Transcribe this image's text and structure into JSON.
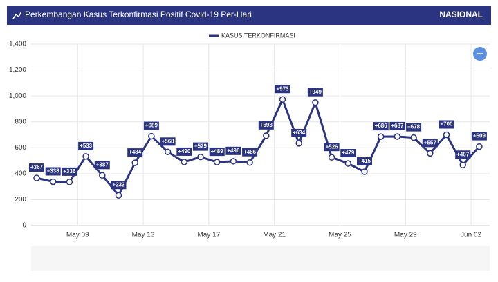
{
  "header": {
    "title": "Perkembangan Kasus Terkonfirmasi Positif Covid-19 Per-Hari",
    "scope": "NASIONAL"
  },
  "chart_data": {
    "type": "line",
    "categories": [
      null,
      null,
      null,
      "May 09",
      null,
      null,
      null,
      "May 13",
      null,
      null,
      null,
      "May 17",
      null,
      null,
      null,
      "May 21",
      null,
      null,
      null,
      "May 25",
      null,
      null,
      null,
      "May 29",
      null,
      null,
      null,
      "Jun 02"
    ],
    "series": [
      {
        "name": "KASUS TERKONFIRMASI",
        "color": "#2b3480",
        "values": [
          367,
          338,
          336,
          533,
          387,
          233,
          484,
          689,
          568,
          490,
          529,
          489,
          496,
          486,
          693,
          973,
          634,
          949,
          526,
          479,
          415,
          686,
          687,
          678,
          557,
          700,
          467,
          609
        ],
        "value_labels": [
          "+367",
          "+338",
          "+336",
          "+533",
          "+387",
          "+233",
          "+484",
          "+689",
          "+568",
          "+490",
          "+529",
          "+489",
          "+496",
          "+486",
          "+693",
          "+973",
          "+634",
          "+949",
          "+526",
          "+479",
          "+415",
          "+686",
          "+687",
          "+678",
          "+557",
          "+700",
          "+467",
          "+609"
        ]
      }
    ],
    "ylim": [
      0,
      1400
    ],
    "yticks": [
      0,
      200,
      400,
      600,
      800,
      {
        "value": 1000,
        "label": "1,000"
      },
      {
        "value": 1200,
        "label": "1,200"
      },
      {
        "value": 1400,
        "label": "1,400"
      }
    ],
    "grid": true
  }
}
